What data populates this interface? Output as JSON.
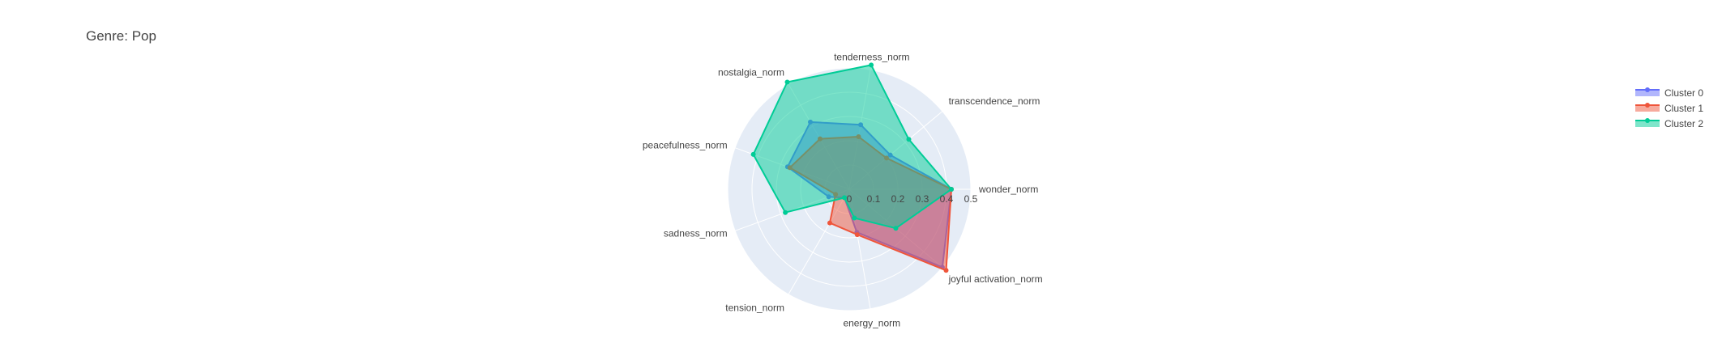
{
  "chart_data": {
    "type": "radar",
    "title": "Genre: Pop",
    "axes": [
      "wonder_norm",
      "transcendence_norm",
      "tenderness_norm",
      "nostalgia_norm",
      "peacefulness_norm",
      "sadness_norm",
      "tension_norm",
      "energy_norm",
      "joyful activation_norm"
    ],
    "radial_range": [
      0,
      0.5
    ],
    "radial_ticks": [
      "0",
      "0.1",
      "0.2",
      "0.3",
      "0.4",
      "0.5"
    ],
    "legend_position": "top-right",
    "series": [
      {
        "name": "Cluster 0",
        "color": "#636efa",
        "values": [
          0.42,
          0.22,
          0.27,
          0.32,
          0.27,
          0.09,
          0.04,
          0.18,
          0.5
        ]
      },
      {
        "name": "Cluster 1",
        "color": "#ef553b",
        "values": [
          0.42,
          0.2,
          0.22,
          0.24,
          0.26,
          0.06,
          0.16,
          0.19,
          0.52
        ]
      },
      {
        "name": "Cluster 2",
        "color": "#00cc96",
        "values": [
          0.42,
          0.32,
          0.52,
          0.51,
          0.42,
          0.28,
          0.04,
          0.12,
          0.25
        ]
      }
    ]
  }
}
